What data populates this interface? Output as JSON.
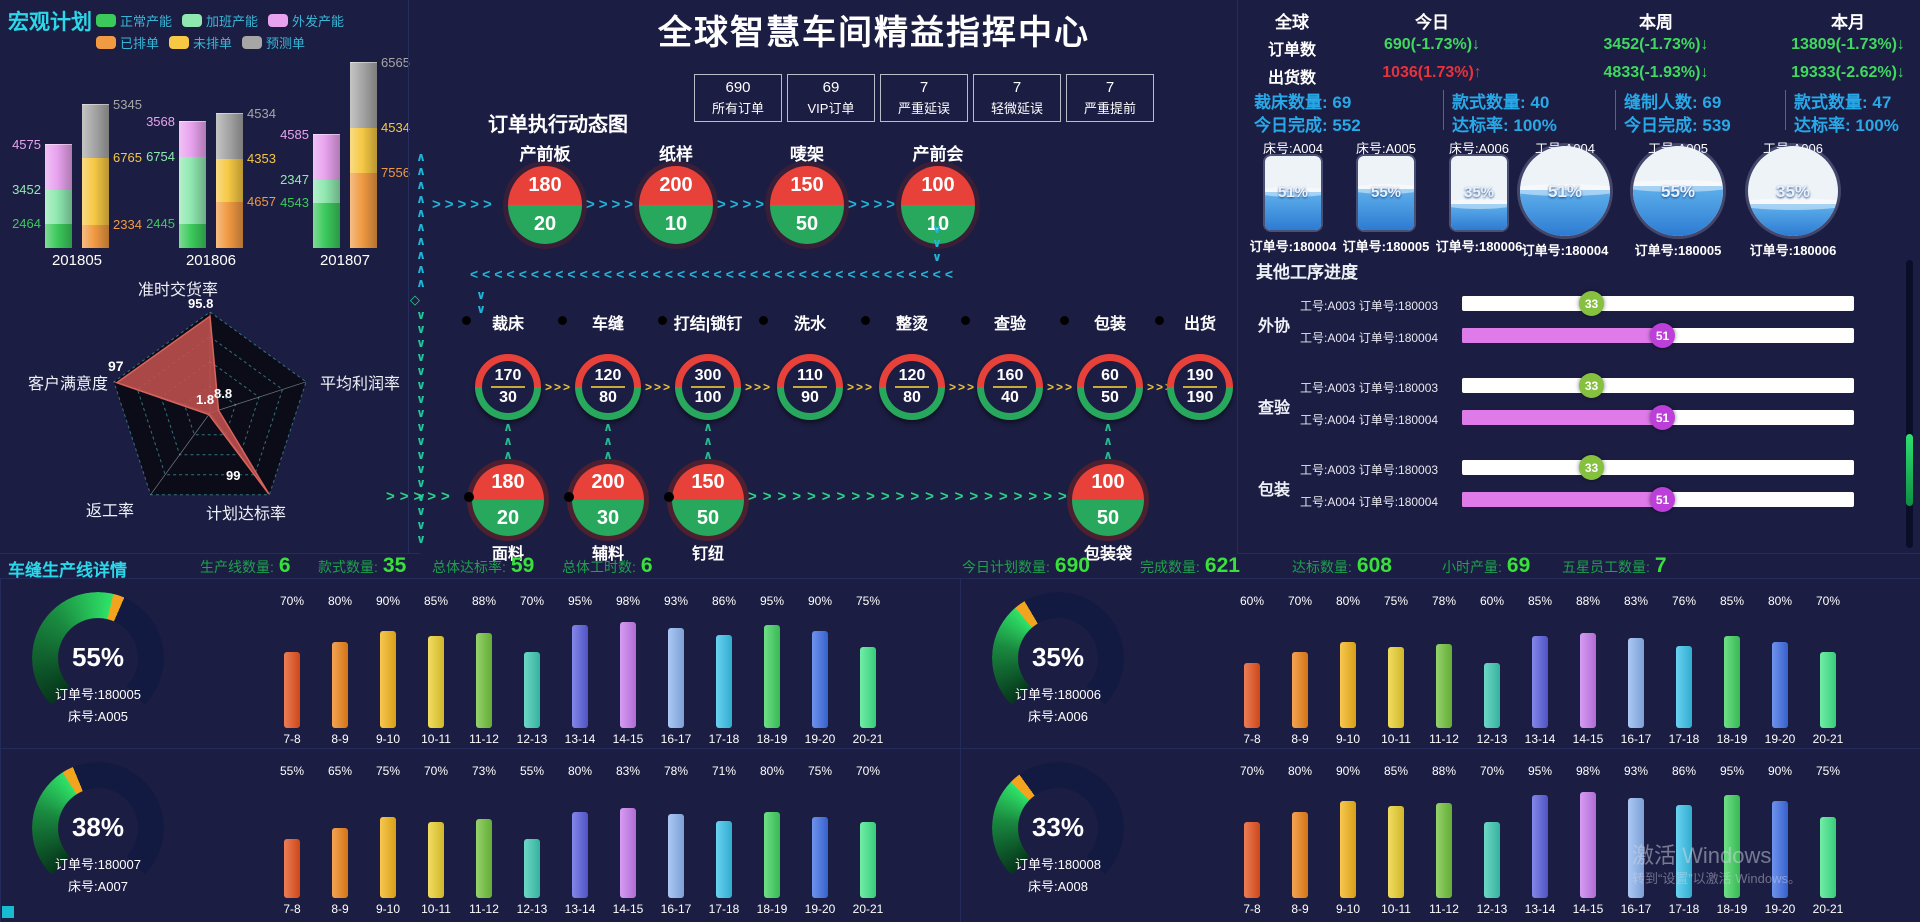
{
  "page": {
    "title": "全球智慧车间精益指挥中心",
    "watermark_line1": "激活 Windows",
    "watermark_line2": "转到“设置”以激活 Windows。"
  },
  "macro_plan": {
    "title": "宏观计划",
    "legend": [
      {
        "label": "正常产能",
        "color": "#3cc95c"
      },
      {
        "label": "加班产能",
        "color": "#8fe8b0"
      },
      {
        "label": "外发产能",
        "color": "#e8a2ee"
      },
      {
        "label": "已排单",
        "color": "#f09a42"
      },
      {
        "label": "未排单",
        "color": "#f6c844"
      },
      {
        "label": "预测单",
        "color": "#a6a6a6"
      }
    ]
  },
  "flow": {
    "title": "订单执行动态图",
    "buttons": [
      {
        "value": "690",
        "label": "所有订单"
      },
      {
        "value": "69",
        "label": "VIP订单"
      },
      {
        "value": "7",
        "label": "严重延误"
      },
      {
        "value": "7",
        "label": "轻微延误"
      },
      {
        "value": "7",
        "label": "严重提前"
      }
    ],
    "top_stages": [
      {
        "name": "产前板",
        "planned": 180,
        "done": 20
      },
      {
        "name": "纸样",
        "planned": 200,
        "done": 10
      },
      {
        "name": "唛架",
        "planned": 150,
        "done": 50
      },
      {
        "name": "产前会",
        "planned": 100,
        "done": 10
      }
    ],
    "mid_stages": [
      {
        "name": "裁床",
        "planned": 170,
        "done": 30
      },
      {
        "name": "车缝",
        "planned": 120,
        "done": 80
      },
      {
        "name": "打结|锁钉",
        "planned": 300,
        "done": 100
      },
      {
        "name": "洗水",
        "planned": 110,
        "done": 90
      },
      {
        "name": "整烫",
        "planned": 120,
        "done": 80
      },
      {
        "name": "查验",
        "planned": 160,
        "done": 40
      },
      {
        "name": "包装",
        "planned": 60,
        "done": 50
      },
      {
        "name": "出货",
        "planned": 190,
        "done": 190
      }
    ],
    "bottom_stages": [
      {
        "name": "面料",
        "planned": 180,
        "done": 20
      },
      {
        "name": "辅料",
        "planned": 200,
        "done": 30
      },
      {
        "name": "钉纽",
        "planned": 150,
        "done": 50
      },
      {
        "name": "包装袋",
        "planned": 100,
        "done": 50
      }
    ],
    "planned_color": "#e8413a",
    "done_color": "#27a85c"
  },
  "global_stats": {
    "table": {
      "headers": [
        "全球",
        "今日",
        "本周",
        "本月"
      ],
      "rows": [
        {
          "label": "订单数",
          "cells": [
            {
              "text": "690(-1.73%)↓",
              "color": "#3fd95f"
            },
            {
              "text": "3452(-1.73%)↓",
              "color": "#3fd95f"
            },
            {
              "text": "13809(-1.73%)↓",
              "color": "#3fd95f"
            }
          ]
        },
        {
          "label": "出货数",
          "cells": [
            {
              "text": "1036(1.73%)↑",
              "color": "#e8323c"
            },
            {
              "text": "4833(-1.93%)↓",
              "color": "#3fd95f"
            },
            {
              "text": "19333(-2.62%)↓",
              "color": "#3fd95f"
            }
          ]
        }
      ]
    },
    "blocks": [
      [
        "裁床数量: 69",
        "今日完成: 552"
      ],
      [
        "款式数量: 40",
        "达标率: 100%"
      ],
      [
        "缝制人数: 69",
        "今日完成: 539"
      ],
      [
        "款式数量: 47",
        "达标率: 100%"
      ]
    ],
    "tanks": [
      {
        "label": "床号:A004",
        "percent": 51,
        "order": "订单号:180004"
      },
      {
        "label": "床号:A005",
        "percent": 55,
        "order": "订单号:180005"
      },
      {
        "label": "床号:A006",
        "percent": 35,
        "order": "订单号:180006"
      }
    ],
    "circles": [
      {
        "label": "工号:A004",
        "percent": 51,
        "order": "订单号:180004"
      },
      {
        "label": "工号:A005",
        "percent": 55,
        "order": "订单号:180005"
      },
      {
        "label": "工号:A006",
        "percent": 35,
        "order": "订单号:180006"
      }
    ]
  },
  "process_progress": {
    "title": "其他工序进度",
    "groups": [
      {
        "name": "外协",
        "rows": [
          {
            "label": "工号:A003 订单号:180003",
            "value": 33,
            "badge_color": "#86c03f",
            "fill_color": "transparent"
          },
          {
            "label": "工号:A004 订单号:180004",
            "value": 51,
            "badge_color": "#bb3fd8",
            "fill_color": "#de7be8"
          }
        ]
      },
      {
        "name": "查验",
        "rows": [
          {
            "label": "工号:A003 订单号:180003",
            "value": 33,
            "badge_color": "#86c03f",
            "fill_color": "transparent"
          },
          {
            "label": "工号:A004 订单号:180004",
            "value": 51,
            "badge_color": "#bb3fd8",
            "fill_color": "#de7be8"
          }
        ]
      },
      {
        "name": "包装",
        "rows": [
          {
            "label": "工号:A003 订单号:180003",
            "value": 33,
            "badge_color": "#86c03f",
            "fill_color": "transparent"
          },
          {
            "label": "工号:A004 订单号:180004",
            "value": 51,
            "badge_color": "#bb3fd8",
            "fill_color": "#de7be8"
          }
        ]
      }
    ]
  },
  "production": {
    "title": "车缝生产线详情",
    "summary_left": [
      {
        "label": "生产线数量:",
        "value": "6"
      },
      {
        "label": "款式数量:",
        "value": "35"
      },
      {
        "label": "总体达标率:",
        "value": "59"
      },
      {
        "label": "总体工时数:",
        "value": "6"
      }
    ],
    "summary_right": [
      {
        "label": "今日计划数量:",
        "value": "690"
      },
      {
        "label": "完成数量:",
        "value": "621"
      },
      {
        "label": "达标数量:",
        "value": "608"
      },
      {
        "label": "小时产量:",
        "value": "69"
      },
      {
        "label": "五星员工数量:",
        "value": "7"
      }
    ],
    "bar_colors": [
      "#e8521d",
      "#f08419",
      "#f5b517",
      "#ecd12e",
      "#72c43c",
      "#3dcbb4",
      "#5a5fe0",
      "#c87bf0",
      "#8fb6f2",
      "#38c4ec",
      "#3fd45f",
      "#3e6fe8",
      "#41e88a"
    ],
    "quadrants": [
      {
        "gauge_percent": 55,
        "order": "订单号:180005",
        "bed": "床号:A005",
        "chart_index": 2
      },
      {
        "gauge_percent": 35,
        "order": "订单号:180006",
        "bed": "床号:A006",
        "chart_index": 3
      },
      {
        "gauge_percent": 38,
        "order": "订单号:180007",
        "bed": "床号:A007",
        "chart_index": 4
      },
      {
        "gauge_percent": 33,
        "order": "订单号:180008",
        "bed": "床号:A008",
        "chart_index": 5
      }
    ]
  },
  "chart_data": [
    {
      "id": "macro-capacity-vs-orders",
      "type": "bar",
      "title": "宏观计划",
      "categories": [
        "201805",
        "201806",
        "201807"
      ],
      "series": [
        {
          "name": "正常产能",
          "stack": "capacity",
          "color": "#3cc95c",
          "values": [
            2464,
            2445,
            4543
          ]
        },
        {
          "name": "加班产能",
          "stack": "capacity",
          "color": "#8fe8b0",
          "values": [
            3452,
            6754,
            2347
          ]
        },
        {
          "name": "外发产能",
          "stack": "capacity",
          "color": "#e8a2ee",
          "values": [
            4575,
            3568,
            4585
          ]
        },
        {
          "name": "已排单",
          "stack": "orders",
          "color": "#f09a42",
          "values": [
            2334,
            4657,
            7556
          ]
        },
        {
          "name": "未排单",
          "stack": "orders",
          "color": "#f6c844",
          "values": [
            6765,
            4353,
            4534
          ]
        },
        {
          "name": "预测单",
          "stack": "orders",
          "color": "#a6a6a6",
          "values": [
            5345,
            4534,
            6565
          ]
        }
      ],
      "ylim": [
        0,
        19000
      ],
      "grid": false,
      "legend_position": "top"
    },
    {
      "id": "kpi-radar",
      "type": "radar",
      "indicators": [
        "准时交货率",
        "平均利润率",
        "计划达标率",
        "返工率",
        "客户满意度"
      ],
      "values": [
        95.8,
        8.8,
        99,
        1.8,
        97
      ],
      "max": 100,
      "value_labels": [
        "95.8",
        "8.8",
        "99",
        "1.8",
        "97"
      ],
      "fill_color": "#c0504d"
    },
    {
      "id": "hourly-output-a005",
      "type": "bar",
      "title": "订单号:180005 床号:A005",
      "gauge_percent": 55,
      "categories": [
        "7-8",
        "8-9",
        "9-10",
        "10-11",
        "11-12",
        "12-13",
        "13-14",
        "14-15",
        "16-17",
        "17-18",
        "18-19",
        "19-20",
        "20-21"
      ],
      "values": [
        70,
        80,
        90,
        85,
        88,
        70,
        95,
        98,
        93,
        86,
        95,
        90,
        75
      ],
      "unit": "%"
    },
    {
      "id": "hourly-output-a006",
      "type": "bar",
      "title": "订单号:180006 床号:A006",
      "gauge_percent": 35,
      "categories": [
        "7-8",
        "8-9",
        "9-10",
        "10-11",
        "11-12",
        "12-13",
        "13-14",
        "14-15",
        "16-17",
        "17-18",
        "18-19",
        "19-20",
        "20-21"
      ],
      "values": [
        60,
        70,
        80,
        75,
        78,
        60,
        85,
        88,
        83,
        76,
        85,
        80,
        70
      ],
      "unit": "%"
    },
    {
      "id": "hourly-output-a007",
      "type": "bar",
      "title": "订单号:180007 床号:A007",
      "gauge_percent": 38,
      "categories": [
        "7-8",
        "8-9",
        "9-10",
        "10-11",
        "11-12",
        "12-13",
        "13-14",
        "14-15",
        "16-17",
        "17-18",
        "18-19",
        "19-20",
        "20-21"
      ],
      "values": [
        55,
        65,
        75,
        70,
        73,
        55,
        80,
        83,
        78,
        71,
        80,
        75,
        70
      ],
      "unit": "%"
    },
    {
      "id": "hourly-output-a008",
      "type": "bar",
      "title": "订单号:180008 床号:A008",
      "gauge_percent": 33,
      "categories": [
        "7-8",
        "8-9",
        "9-10",
        "10-11",
        "11-12",
        "12-13",
        "13-14",
        "14-15",
        "16-17",
        "17-18",
        "18-19",
        "19-20",
        "20-21"
      ],
      "values": [
        70,
        80,
        90,
        85,
        88,
        70,
        95,
        98,
        93,
        86,
        95,
        90,
        75
      ],
      "unit": "%"
    }
  ]
}
